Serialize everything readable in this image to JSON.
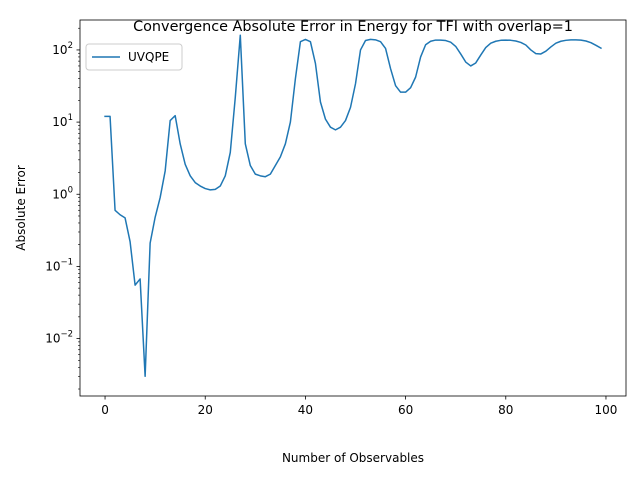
{
  "chart_data": {
    "type": "line",
    "title": "Convergence Absolute Error in Energy for TFI with overlap=1",
    "xlabel": "Number of Observables",
    "ylabel": "Absolute Error",
    "xlim": [
      -5,
      104
    ],
    "ylim": [
      0.0016,
      260
    ],
    "yscale": "log",
    "xticks": [
      0,
      20,
      40,
      60,
      80,
      100
    ],
    "yticks": [
      {
        "value": 0.01,
        "base": "10",
        "exp": "−2"
      },
      {
        "value": 0.1,
        "base": "10",
        "exp": "−1"
      },
      {
        "value": 1,
        "base": "10",
        "exp": "0"
      },
      {
        "value": 10,
        "base": "10",
        "exp": "1"
      },
      {
        "value": 100,
        "base": "10",
        "exp": "2"
      }
    ],
    "grid": false,
    "legend_position": "upper-left",
    "series": [
      {
        "name": "UVQPE",
        "color": "#1f77b4",
        "x": [
          0,
          1,
          2,
          3,
          4,
          5,
          6,
          7,
          8,
          9,
          10,
          11,
          12,
          13,
          14,
          15,
          16,
          17,
          18,
          19,
          20,
          21,
          22,
          23,
          24,
          25,
          26,
          27,
          28,
          29,
          30,
          31,
          32,
          33,
          34,
          35,
          36,
          37,
          38,
          39,
          40,
          41,
          42,
          43,
          44,
          45,
          46,
          47,
          48,
          49,
          50,
          51,
          52,
          53,
          54,
          55,
          56,
          57,
          58,
          59,
          60,
          61,
          62,
          63,
          64,
          65,
          66,
          67,
          68,
          69,
          70,
          71,
          72,
          73,
          74,
          75,
          76,
          77,
          78,
          79,
          80,
          81,
          82,
          83,
          84,
          85,
          86,
          87,
          88,
          89,
          90,
          91,
          92,
          93,
          94,
          95,
          96,
          97,
          98,
          99
        ],
        "values": [
          12,
          12,
          0.6,
          0.52,
          0.47,
          0.22,
          0.055,
          0.067,
          0.003,
          0.21,
          0.48,
          0.9,
          2.1,
          10.5,
          12.3,
          5,
          2.6,
          1.8,
          1.45,
          1.3,
          1.2,
          1.15,
          1.17,
          1.3,
          1.8,
          3.8,
          22,
          160,
          5,
          2.5,
          1.9,
          1.8,
          1.75,
          1.9,
          2.5,
          3.3,
          5,
          10,
          40,
          130,
          140,
          130,
          65,
          19,
          11,
          8.5,
          7.8,
          8.5,
          10.5,
          16,
          34,
          100,
          135,
          140,
          138,
          130,
          105,
          55,
          32,
          26,
          26,
          30,
          42,
          80,
          118,
          132,
          137,
          137,
          135,
          128,
          112,
          88,
          68,
          60,
          66,
          85,
          108,
          124,
          132,
          136,
          137,
          136,
          133,
          127,
          117,
          100,
          89,
          88,
          96,
          110,
          124,
          132,
          136,
          138,
          138,
          137,
          133,
          126,
          116,
          106
        ]
      }
    ]
  }
}
